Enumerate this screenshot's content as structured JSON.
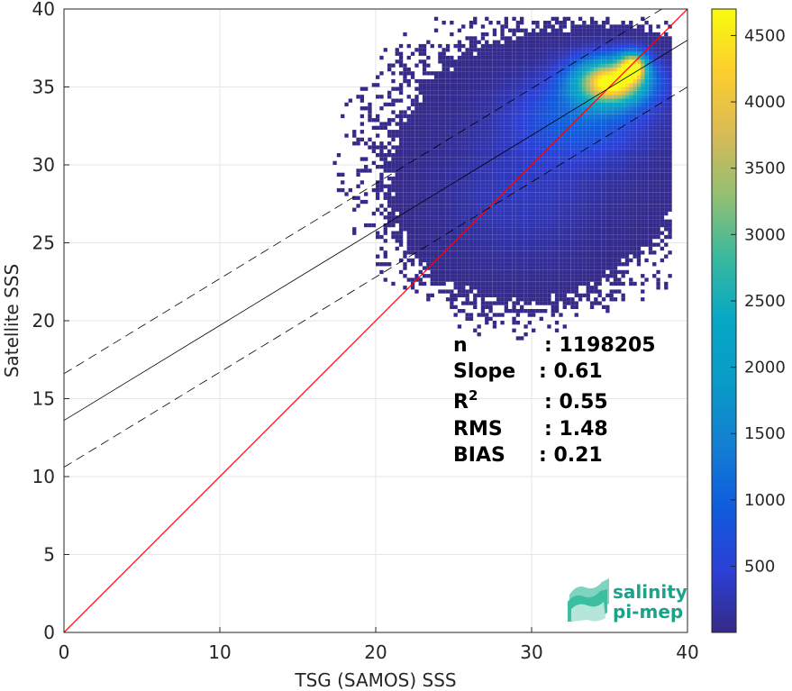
{
  "chart_data": {
    "type": "heatmap",
    "title": "",
    "xlabel": "TSG (SAMOS) SSS",
    "ylabel": "Satellite SSS",
    "xlim": [
      0,
      40
    ],
    "ylim": [
      0,
      40
    ],
    "xticks": [
      0,
      10,
      20,
      30,
      40
    ],
    "yticks": [
      0,
      5,
      10,
      15,
      20,
      25,
      30,
      35,
      40
    ],
    "grid": true,
    "colormap": "parula",
    "colorbar": {
      "range": [
        1,
        4700
      ],
      "ticks": [
        500,
        1000,
        1500,
        2000,
        2500,
        3000,
        3500,
        4000,
        4500
      ]
    },
    "density_clusters": [
      {
        "x": 35.0,
        "y": 35.2,
        "sx": 1.6,
        "sy": 1.0,
        "peak": 4700
      },
      {
        "x": 36.4,
        "y": 36.2,
        "sx": 0.6,
        "sy": 0.6,
        "peak": 3600
      },
      {
        "x": 33.0,
        "y": 33.0,
        "sx": 2.8,
        "sy": 1.8,
        "peak": 900
      },
      {
        "x": 29.0,
        "y": 27.5,
        "sx": 3.2,
        "sy": 2.8,
        "peak": 250
      },
      {
        "x": 31.5,
        "y": 31.0,
        "sx": 5.0,
        "sy": 3.5,
        "peak": 120
      }
    ],
    "fit_line": {
      "slope": 0.61,
      "intercept": 13.6,
      "color": "#000000"
    },
    "fit_bounds": {
      "offset": 3.0,
      "style": "dashed",
      "color": "#000000"
    },
    "one_to_one": {
      "x": [
        0,
        40
      ],
      "y": [
        0,
        40
      ],
      "color": "#ff0000"
    },
    "stats": [
      {
        "label": "n",
        "value": ": 1198205"
      },
      {
        "label": "Slope",
        "value": ": 0.61"
      },
      {
        "label": "R",
        "sup": "2",
        "value": ": 0.55"
      },
      {
        "label": "RMS",
        "value": ": 1.48"
      },
      {
        "label": "BIAS",
        "value": ": 0.21"
      }
    ]
  },
  "logo": {
    "line1": "salinity",
    "line2": "pi-mep"
  }
}
